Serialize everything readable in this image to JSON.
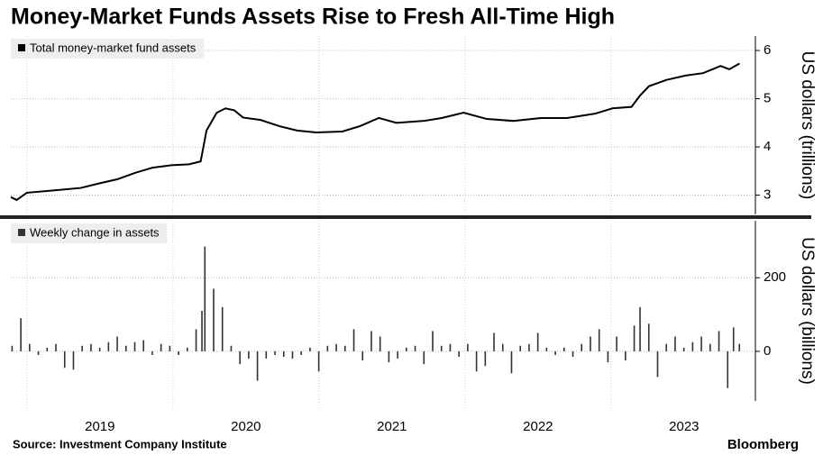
{
  "title": "Money-Market Funds Assets Rise to Fresh All-Time High",
  "source": "Source: Investment Company Institute",
  "brand": "Bloomberg",
  "chart_data": [
    {
      "type": "line",
      "y_label": "US dollars (trillions)",
      "x": [
        2018.89,
        2018.93,
        2019.0,
        2019.19,
        2019.37,
        2019.49,
        2019.62,
        2019.74,
        2019.86,
        2019.99,
        2020.11,
        2020.19,
        2020.23,
        2020.3,
        2020.36,
        2020.42,
        2020.48,
        2020.6,
        2020.73,
        2020.85,
        2020.98,
        2021.16,
        2021.28,
        2021.41,
        2021.53,
        2021.72,
        2021.84,
        2021.99,
        2022.15,
        2022.33,
        2022.52,
        2022.7,
        2022.89,
        2023.01,
        2023.14,
        2023.2,
        2023.26,
        2023.38,
        2023.51,
        2023.63,
        2023.75,
        2023.81,
        2023.88
      ],
      "series": [
        {
          "name": "Total money-market fund assets",
          "color": "#000000",
          "values": [
            2.96,
            2.9,
            3.05,
            3.1,
            3.15,
            3.24,
            3.33,
            3.46,
            3.57,
            3.62,
            3.64,
            3.7,
            4.34,
            4.71,
            4.8,
            4.76,
            4.61,
            4.56,
            4.43,
            4.34,
            4.3,
            4.32,
            4.43,
            4.6,
            4.5,
            4.54,
            4.6,
            4.71,
            4.58,
            4.54,
            4.6,
            4.6,
            4.69,
            4.8,
            4.83,
            5.07,
            5.26,
            5.39,
            5.48,
            5.53,
            5.68,
            5.61,
            5.73
          ]
        }
      ],
      "xlim": [
        2018.89,
        2023.97
      ],
      "ylim": [
        2.6,
        6.3
      ],
      "yticks": [
        3,
        4,
        5,
        6
      ],
      "xgrid": [
        2019,
        2020,
        2021,
        2022,
        2023
      ],
      "grid": true
    },
    {
      "type": "bar",
      "y_label": "US dollars (billions)",
      "x": [
        2018.9,
        2018.96,
        2019.02,
        2019.08,
        2019.14,
        2019.2,
        2019.26,
        2019.32,
        2019.38,
        2019.44,
        2019.5,
        2019.56,
        2019.62,
        2019.68,
        2019.74,
        2019.8,
        2019.86,
        2019.92,
        2019.98,
        2020.04,
        2020.1,
        2020.16,
        2020.2,
        2020.22,
        2020.28,
        2020.34,
        2020.4,
        2020.46,
        2020.52,
        2020.58,
        2020.64,
        2020.7,
        2020.76,
        2020.82,
        2020.88,
        2020.94,
        2021.0,
        2021.06,
        2021.12,
        2021.18,
        2021.24,
        2021.3,
        2021.36,
        2021.42,
        2021.48,
        2021.54,
        2021.6,
        2021.66,
        2021.72,
        2021.78,
        2021.84,
        2021.9,
        2021.96,
        2022.02,
        2022.08,
        2022.14,
        2022.2,
        2022.26,
        2022.32,
        2022.38,
        2022.44,
        2022.5,
        2022.56,
        2022.62,
        2022.68,
        2022.74,
        2022.8,
        2022.86,
        2022.92,
        2022.98,
        2023.04,
        2023.1,
        2023.16,
        2023.2,
        2023.26,
        2023.32,
        2023.38,
        2023.44,
        2023.5,
        2023.56,
        2023.62,
        2023.68,
        2023.74,
        2023.8,
        2023.84,
        2023.88
      ],
      "series": [
        {
          "name": "Weekly change in assets",
          "color": "#333333",
          "values": [
            15,
            90,
            20,
            -10,
            10,
            20,
            -45,
            -50,
            15,
            20,
            10,
            25,
            40,
            15,
            25,
            30,
            -10,
            20,
            15,
            -10,
            10,
            60,
            110,
            285,
            170,
            120,
            15,
            -35,
            -20,
            -80,
            -20,
            -10,
            -15,
            -20,
            -10,
            10,
            -55,
            15,
            20,
            15,
            60,
            -25,
            55,
            40,
            -30,
            -20,
            10,
            15,
            -35,
            55,
            15,
            20,
            -15,
            20,
            -55,
            -40,
            50,
            20,
            -60,
            15,
            20,
            50,
            10,
            -10,
            10,
            -15,
            20,
            40,
            60,
            -30,
            40,
            -25,
            70,
            120,
            75,
            -70,
            20,
            40,
            10,
            25,
            40,
            20,
            55,
            -100,
            65,
            20
          ]
        }
      ],
      "xlim": [
        2018.89,
        2023.97
      ],
      "ylim": [
        -135,
        355
      ],
      "yticks": [
        0,
        200
      ],
      "xticks": [
        {
          "value": 2019.5,
          "label": "2019"
        },
        {
          "value": 2020.5,
          "label": "2020"
        },
        {
          "value": 2021.5,
          "label": "2021"
        },
        {
          "value": 2022.5,
          "label": "2022"
        },
        {
          "value": 2023.5,
          "label": "2023"
        }
      ],
      "xgrid": [
        2019,
        2020,
        2021,
        2022,
        2023
      ],
      "grid": true
    }
  ]
}
